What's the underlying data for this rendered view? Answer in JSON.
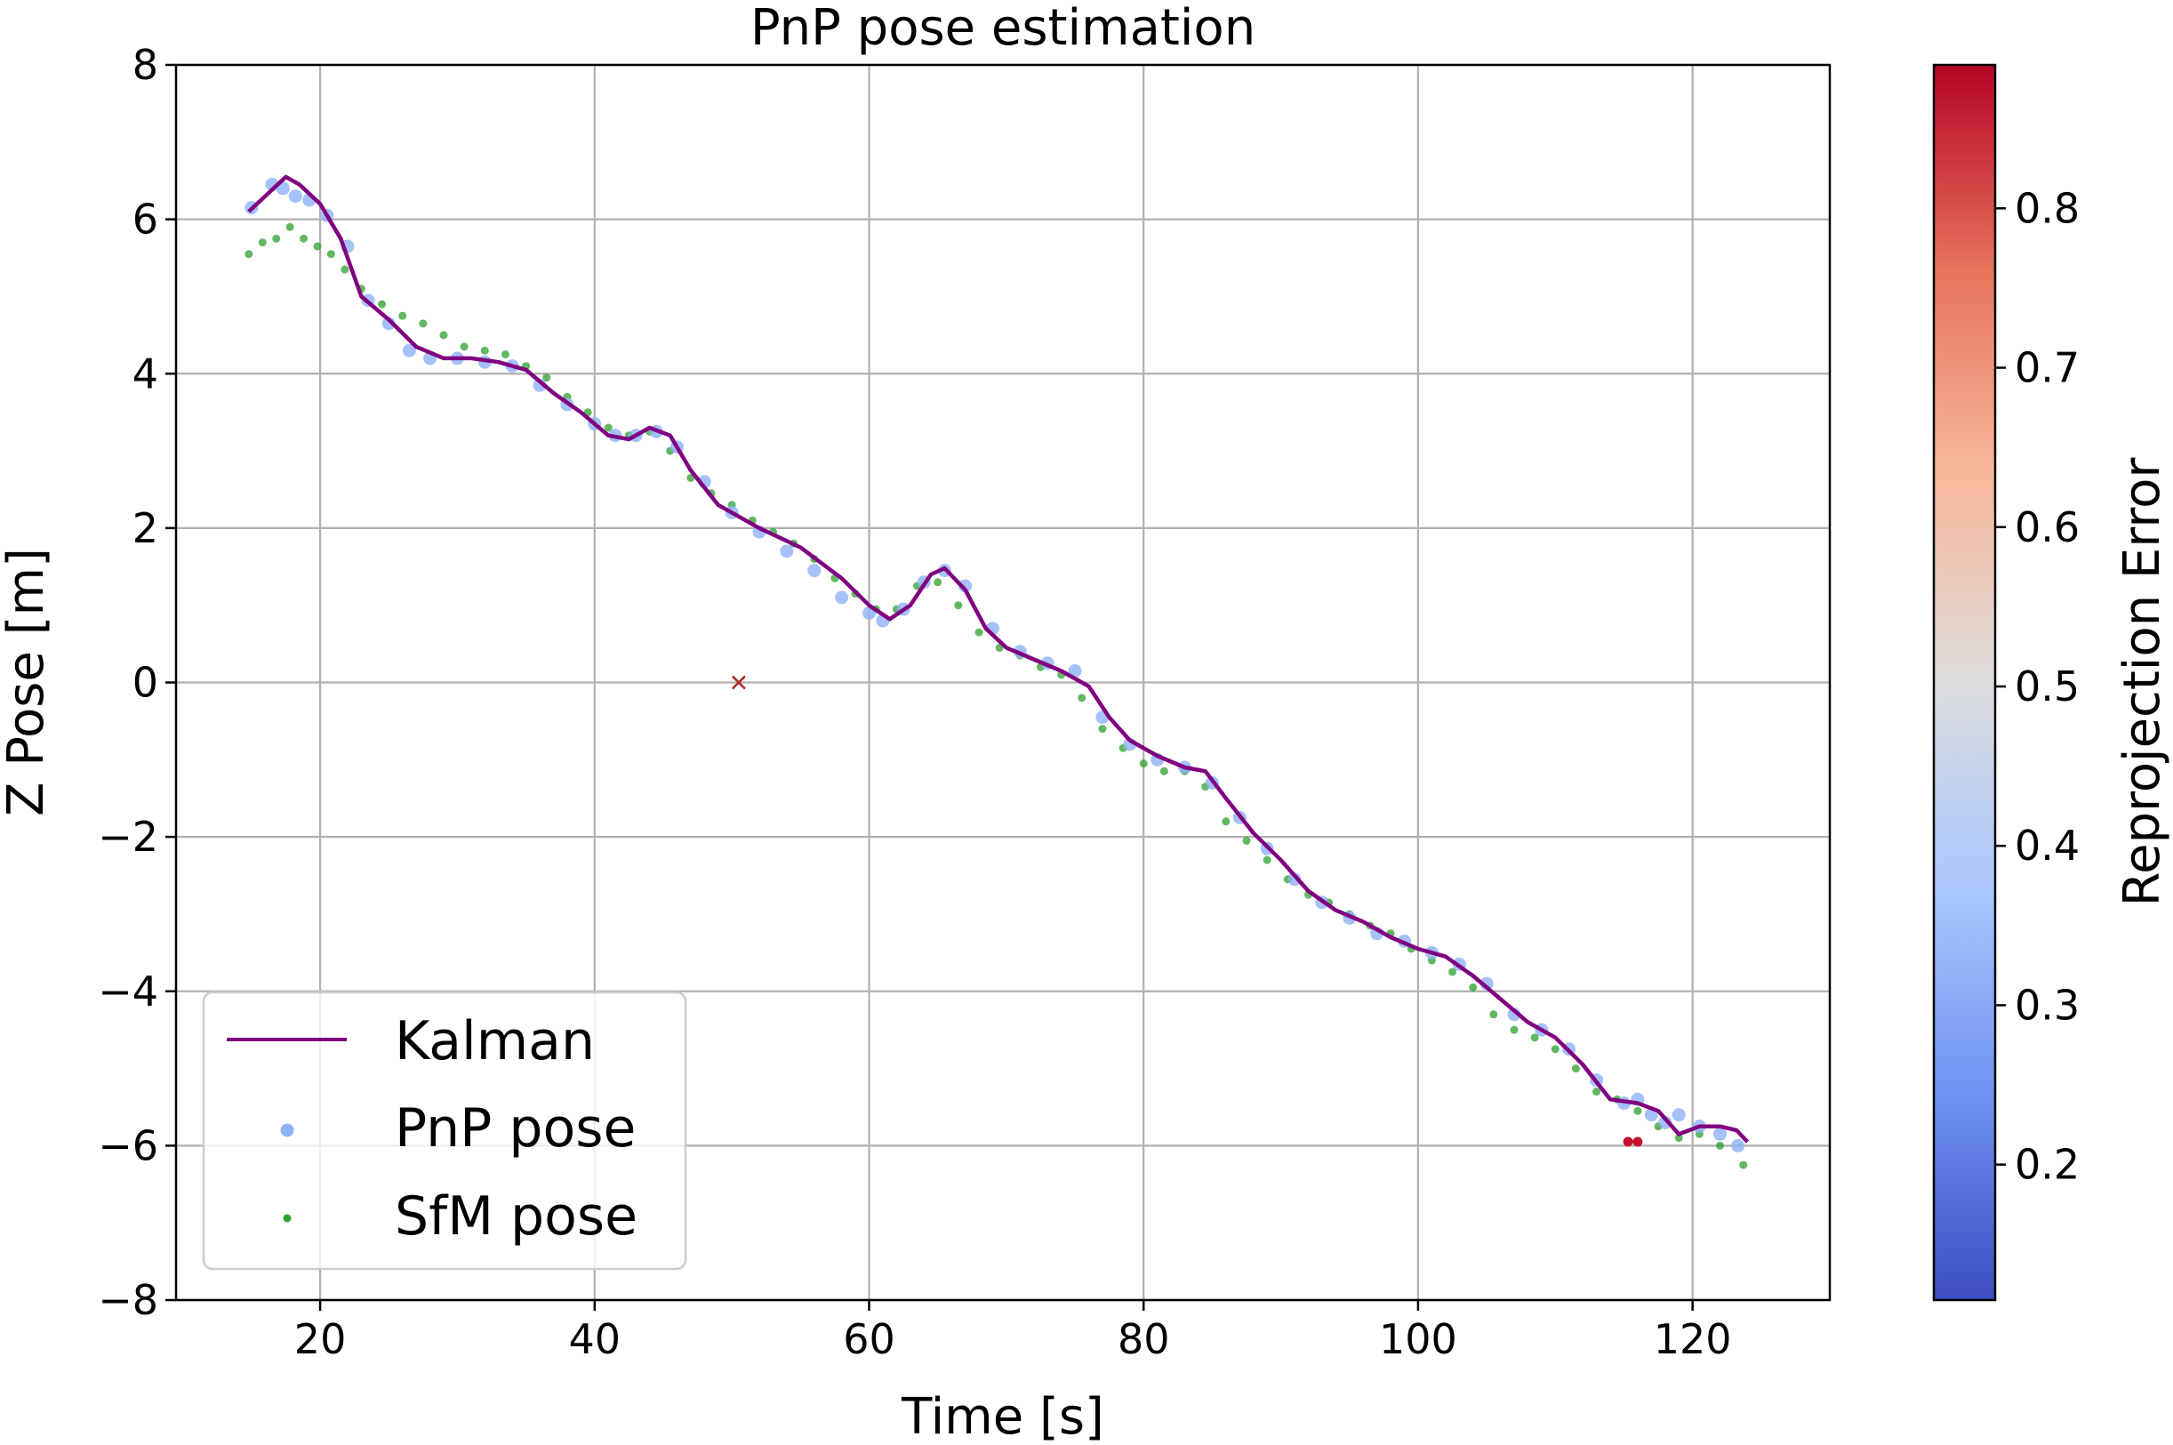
{
  "chart_data": {
    "type": "scatter",
    "title": "PnP pose estimation",
    "xlabel": "Time [s]",
    "ylabel": "Z Pose [m]",
    "xlim": [
      9.5,
      130
    ],
    "ylim": [
      -8,
      8
    ],
    "xticks": [
      20,
      40,
      60,
      80,
      100,
      120
    ],
    "yticks": [
      -8,
      -6,
      -4,
      -2,
      0,
      2,
      4,
      6,
      8
    ],
    "grid": true,
    "legend_position": "bottom-left",
    "colorbar": {
      "label": "Reprojection Error",
      "colormap": "coolwarm",
      "range": [
        0.115,
        0.89
      ],
      "ticks": [
        0.2,
        0.3,
        0.4,
        0.5,
        0.6,
        0.7,
        0.8
      ],
      "colors": [
        "#3b4cc0",
        "#6f92f3",
        "#aac7fd",
        "#dddddd",
        "#f7b89c",
        "#e7745b",
        "#b40426"
      ]
    },
    "series": [
      {
        "name": "Kalman",
        "kind": "line",
        "color": "#800080",
        "x": [
          14.8,
          16,
          17.5,
          18.5,
          20,
          21.5,
          23,
          25,
          27,
          29,
          31,
          33,
          35,
          37,
          39,
          41,
          42.5,
          44,
          45.5,
          47,
          49,
          52,
          55,
          58,
          60,
          61.5,
          63,
          64.5,
          65.5,
          67,
          68.5,
          70,
          72,
          74,
          76,
          77.5,
          79,
          81,
          83,
          84.5,
          86,
          88,
          90,
          92,
          94,
          96,
          98,
          100,
          102,
          104,
          106,
          108,
          110,
          112,
          114,
          116,
          117.5,
          119,
          120.5,
          122,
          123.2,
          124
        ],
        "y": [
          6.1,
          6.3,
          6.55,
          6.45,
          6.2,
          5.75,
          5.0,
          4.7,
          4.35,
          4.2,
          4.2,
          4.15,
          4.05,
          3.75,
          3.5,
          3.2,
          3.15,
          3.3,
          3.2,
          2.75,
          2.3,
          2.0,
          1.75,
          1.35,
          1.0,
          0.82,
          1.0,
          1.4,
          1.48,
          1.2,
          0.7,
          0.45,
          0.3,
          0.15,
          -0.05,
          -0.45,
          -0.75,
          -0.95,
          -1.1,
          -1.15,
          -1.5,
          -1.95,
          -2.3,
          -2.7,
          -2.95,
          -3.1,
          -3.3,
          -3.45,
          -3.55,
          -3.8,
          -4.1,
          -4.4,
          -4.6,
          -4.95,
          -5.4,
          -5.45,
          -5.55,
          -5.85,
          -5.75,
          -5.75,
          -5.8,
          -5.95
        ]
      },
      {
        "name": "PnP pose",
        "kind": "scatter",
        "color": "#8fb1f6",
        "x": [
          15,
          16.5,
          17.3,
          18.2,
          19.2,
          20.5,
          22,
          23.5,
          25,
          26.5,
          28,
          30,
          32,
          34,
          36,
          38,
          40,
          41.5,
          43,
          44.5,
          46,
          48,
          50,
          52,
          54,
          56,
          58,
          60,
          61,
          62.5,
          64,
          65.5,
          67,
          69,
          71,
          73,
          75,
          77,
          79,
          81,
          83,
          85,
          87,
          89,
          91,
          93,
          95,
          97,
          99,
          101,
          103,
          105,
          107,
          109,
          111,
          113,
          115,
          116,
          117,
          118,
          119,
          120.5,
          122,
          123.3
        ],
        "y": [
          6.15,
          6.45,
          6.4,
          6.3,
          6.25,
          6.05,
          5.65,
          4.95,
          4.65,
          4.3,
          4.2,
          4.2,
          4.15,
          4.1,
          3.85,
          3.6,
          3.35,
          3.2,
          3.2,
          3.25,
          3.05,
          2.6,
          2.2,
          1.95,
          1.7,
          1.45,
          1.1,
          0.9,
          0.8,
          0.95,
          1.3,
          1.45,
          1.25,
          0.7,
          0.4,
          0.25,
          0.15,
          -0.45,
          -0.8,
          -1.0,
          -1.1,
          -1.3,
          -1.75,
          -2.15,
          -2.55,
          -2.85,
          -3.05,
          -3.25,
          -3.35,
          -3.5,
          -3.65,
          -3.9,
          -4.3,
          -4.5,
          -4.75,
          -5.15,
          -5.45,
          -5.4,
          -5.6,
          -5.7,
          -5.6,
          -5.75,
          -5.85,
          -6.0
        ]
      },
      {
        "name": "SfM pose",
        "kind": "scatter",
        "color": "#2ca02c",
        "x": [
          14.8,
          15.8,
          16.8,
          17.8,
          18.8,
          19.8,
          20.8,
          21.8,
          23,
          24.5,
          26,
          27.5,
          29,
          30.5,
          32,
          33.5,
          35,
          36.5,
          38,
          39.5,
          41,
          42.5,
          44,
          45.5,
          47,
          48.5,
          50,
          51.5,
          53,
          54.5,
          56,
          57.5,
          59,
          60.5,
          62,
          63.5,
          65,
          66.5,
          68,
          69.5,
          71,
          72.5,
          74,
          75.5,
          77,
          78.5,
          80,
          81.5,
          83,
          84.5,
          86,
          87.5,
          89,
          90.5,
          92,
          93.5,
          95,
          96.5,
          98,
          99.5,
          101,
          102.5,
          104,
          105.5,
          107,
          108.5,
          110,
          111.5,
          113,
          114.5,
          116,
          117.5,
          119,
          120.5,
          122,
          123.7
        ],
        "y": [
          5.55,
          5.7,
          5.75,
          5.9,
          5.75,
          5.65,
          5.55,
          5.35,
          5.1,
          4.9,
          4.75,
          4.65,
          4.5,
          4.35,
          4.3,
          4.25,
          4.1,
          3.95,
          3.7,
          3.5,
          3.3,
          3.2,
          3.25,
          3.0,
          2.65,
          2.45,
          2.3,
          2.1,
          1.95,
          1.8,
          1.6,
          1.35,
          1.15,
          0.95,
          0.95,
          1.25,
          1.3,
          1.0,
          0.65,
          0.45,
          0.35,
          0.2,
          0.1,
          -0.2,
          -0.6,
          -0.85,
          -1.05,
          -1.15,
          -1.15,
          -1.35,
          -1.8,
          -2.05,
          -2.3,
          -2.55,
          -2.75,
          -2.85,
          -3.0,
          -3.15,
          -3.25,
          -3.45,
          -3.6,
          -3.75,
          -3.95,
          -4.3,
          -4.5,
          -4.6,
          -4.75,
          -5.0,
          -5.3,
          -5.4,
          -5.55,
          -5.75,
          -5.9,
          -5.85,
          -6.0,
          -6.25
        ]
      }
    ],
    "annotations": [
      {
        "type": "x-marker",
        "x": 50.5,
        "y": 0.0,
        "color": "#b22222"
      },
      {
        "type": "outlier-points",
        "x": [
          115.3,
          116.0
        ],
        "y": [
          -5.95,
          -5.95
        ],
        "color": "#c8102e"
      }
    ]
  }
}
